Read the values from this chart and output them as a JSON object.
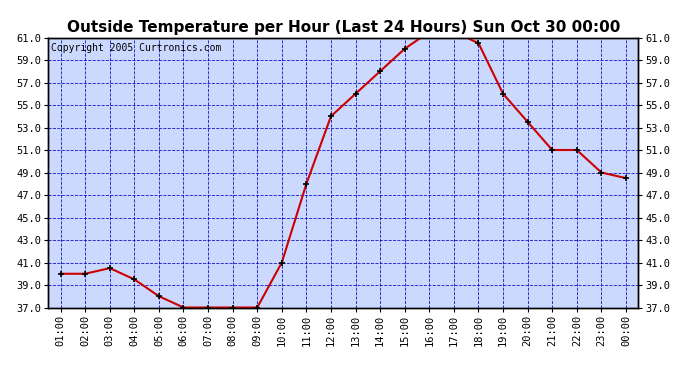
{
  "title": "Outside Temperature per Hour (Last 24 Hours) Sun Oct 30 00:00",
  "copyright": "Copyright 2005 Curtronics.com",
  "hours": [
    "01:00",
    "02:00",
    "03:00",
    "04:00",
    "05:00",
    "06:00",
    "07:00",
    "08:00",
    "09:00",
    "10:00",
    "11:00",
    "12:00",
    "13:00",
    "14:00",
    "15:00",
    "16:00",
    "17:00",
    "18:00",
    "19:00",
    "20:00",
    "21:00",
    "22:00",
    "23:00",
    "00:00"
  ],
  "temps": [
    40.0,
    40.0,
    40.5,
    39.5,
    38.0,
    37.0,
    37.0,
    37.0,
    37.0,
    41.0,
    48.0,
    54.0,
    56.0,
    58.0,
    60.0,
    61.5,
    61.5,
    60.5,
    56.0,
    53.5,
    51.0,
    51.0,
    49.0,
    48.5
  ],
  "ylim": [
    37.0,
    61.0
  ],
  "ytick_min": 37.0,
  "ytick_max": 61.0,
  "ytick_step": 2.0,
  "line_color": "#cc0000",
  "marker_color": "#000000",
  "bg_color": "#ccd9ff",
  "grid_color": "#0000bb",
  "title_fontsize": 11,
  "copyright_fontsize": 7,
  "tick_fontsize": 7.5
}
